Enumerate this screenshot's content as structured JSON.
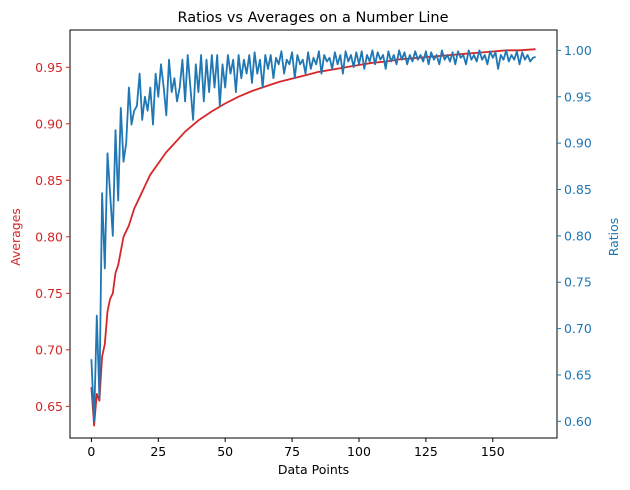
{
  "chart_data": {
    "type": "line",
    "title": "Ratios vs Averages on a Number Line",
    "xlabel": "Data Points",
    "ylabel_left": "Averages",
    "ylabel_right": "Ratios",
    "xlim": [
      -8,
      174
    ],
    "ylim_left": [
      0.622,
      0.983
    ],
    "ylim_right": [
      0.582,
      1.022
    ],
    "x_ticks": [
      0,
      25,
      50,
      75,
      100,
      125,
      150
    ],
    "y_left_ticks": [
      0.65,
      0.7,
      0.75,
      0.8,
      0.85,
      0.9,
      0.95
    ],
    "y_right_ticks": [
      0.6,
      0.65,
      0.7,
      0.75,
      0.8,
      0.85,
      0.9,
      0.95,
      1.0
    ],
    "grid": false,
    "colors": {
      "averages": "#d62728",
      "ratios": "#1f77b4"
    },
    "series": [
      {
        "name": "Averages",
        "axis": "left",
        "x": [
          0,
          1,
          2,
          3,
          4,
          5,
          6,
          7,
          8,
          9,
          10,
          12,
          14,
          16,
          18,
          20,
          22,
          25,
          28,
          30,
          35,
          40,
          45,
          50,
          55,
          60,
          65,
          70,
          75,
          80,
          85,
          90,
          95,
          100,
          105,
          110,
          115,
          120,
          125,
          130,
          135,
          140,
          145,
          150,
          155,
          160,
          166
        ],
        "values": [
          0.667,
          0.633,
          0.661,
          0.655,
          0.694,
          0.705,
          0.734,
          0.745,
          0.75,
          0.768,
          0.775,
          0.8,
          0.81,
          0.825,
          0.835,
          0.845,
          0.855,
          0.865,
          0.875,
          0.88,
          0.893,
          0.903,
          0.911,
          0.918,
          0.924,
          0.929,
          0.933,
          0.937,
          0.94,
          0.943,
          0.946,
          0.948,
          0.95,
          0.952,
          0.954,
          0.955,
          0.957,
          0.958,
          0.959,
          0.96,
          0.961,
          0.962,
          0.963,
          0.964,
          0.965,
          0.965,
          0.966
        ]
      },
      {
        "name": "Ratios",
        "axis": "right",
        "x": [
          0,
          1,
          2,
          3,
          4,
          5,
          6,
          7,
          8,
          9,
          10,
          11,
          12,
          13,
          14,
          15,
          16,
          17,
          18,
          19,
          20,
          21,
          22,
          23,
          24,
          25,
          26,
          27,
          28,
          29,
          30,
          31,
          32,
          33,
          34,
          35,
          36,
          37,
          38,
          39,
          40,
          41,
          42,
          43,
          44,
          45,
          46,
          47,
          48,
          49,
          50,
          51,
          52,
          53,
          54,
          55,
          56,
          57,
          58,
          59,
          60,
          61,
          62,
          63,
          64,
          65,
          66,
          67,
          68,
          69,
          70,
          71,
          72,
          73,
          74,
          75,
          76,
          77,
          78,
          79,
          80,
          81,
          82,
          83,
          84,
          85,
          86,
          87,
          88,
          89,
          90,
          91,
          92,
          93,
          94,
          95,
          96,
          97,
          98,
          99,
          100,
          101,
          102,
          103,
          104,
          105,
          106,
          107,
          108,
          109,
          110,
          111,
          112,
          113,
          114,
          115,
          116,
          117,
          118,
          119,
          120,
          121,
          122,
          123,
          124,
          125,
          126,
          127,
          128,
          129,
          130,
          131,
          132,
          133,
          134,
          135,
          136,
          137,
          138,
          139,
          140,
          141,
          142,
          143,
          144,
          145,
          146,
          147,
          148,
          149,
          150,
          151,
          152,
          153,
          154,
          155,
          156,
          157,
          158,
          159,
          160,
          161,
          162,
          163,
          164,
          165,
          166
        ],
        "values": [
          0.667,
          0.6,
          0.714,
          0.625,
          0.846,
          0.765,
          0.889,
          0.846,
          0.8,
          0.914,
          0.838,
          0.938,
          0.88,
          0.9,
          0.96,
          0.92,
          0.935,
          0.94,
          0.975,
          0.925,
          0.95,
          0.935,
          0.96,
          0.92,
          0.975,
          0.95,
          0.985,
          0.96,
          0.93,
          0.99,
          0.955,
          0.97,
          0.945,
          0.96,
          0.99,
          0.945,
          0.995,
          0.96,
          0.925,
          0.985,
          0.955,
          0.995,
          0.945,
          0.99,
          0.955,
          0.995,
          0.96,
          0.995,
          0.94,
          0.985,
          0.96,
          0.995,
          0.975,
          0.99,
          0.955,
          0.995,
          0.97,
          0.99,
          0.975,
          0.995,
          0.965,
          0.998,
          0.975,
          0.99,
          0.96,
          0.995,
          0.98,
          0.995,
          0.97,
          0.992,
          0.985,
          0.999,
          0.975,
          0.99,
          0.985,
          0.998,
          0.97,
          0.995,
          0.985,
          0.99,
          0.975,
          0.998,
          0.98,
          0.992,
          0.985,
          0.999,
          0.975,
          0.995,
          0.988,
          0.992,
          0.98,
          0.998,
          0.985,
          0.995,
          0.975,
          0.999,
          0.988,
          0.995,
          0.982,
          0.998,
          0.985,
          0.999,
          0.98,
          0.995,
          0.988,
          1.0,
          0.985,
          0.998,
          0.99,
          0.995,
          0.98,
          0.999,
          0.988,
          0.995,
          0.985,
          1.0,
          0.99,
          0.998,
          0.985,
          0.995,
          0.988,
          0.999,
          0.99,
          0.995,
          0.988,
          0.999,
          0.985,
          0.998,
          0.99,
          0.995,
          0.985,
          1.0,
          0.99,
          0.995,
          0.988,
          0.998,
          0.985,
          0.999,
          0.992,
          0.995,
          0.985,
          1.0,
          0.99,
          0.995,
          0.988,
          1.0,
          0.99,
          0.995,
          0.985,
          0.999,
          0.992,
          0.998,
          0.98,
          0.995,
          0.99,
          1.0,
          0.988,
          0.995,
          0.99,
          0.999,
          0.985,
          0.998,
          0.99,
          0.995,
          0.988,
          0.992,
          0.993
        ]
      }
    ]
  }
}
